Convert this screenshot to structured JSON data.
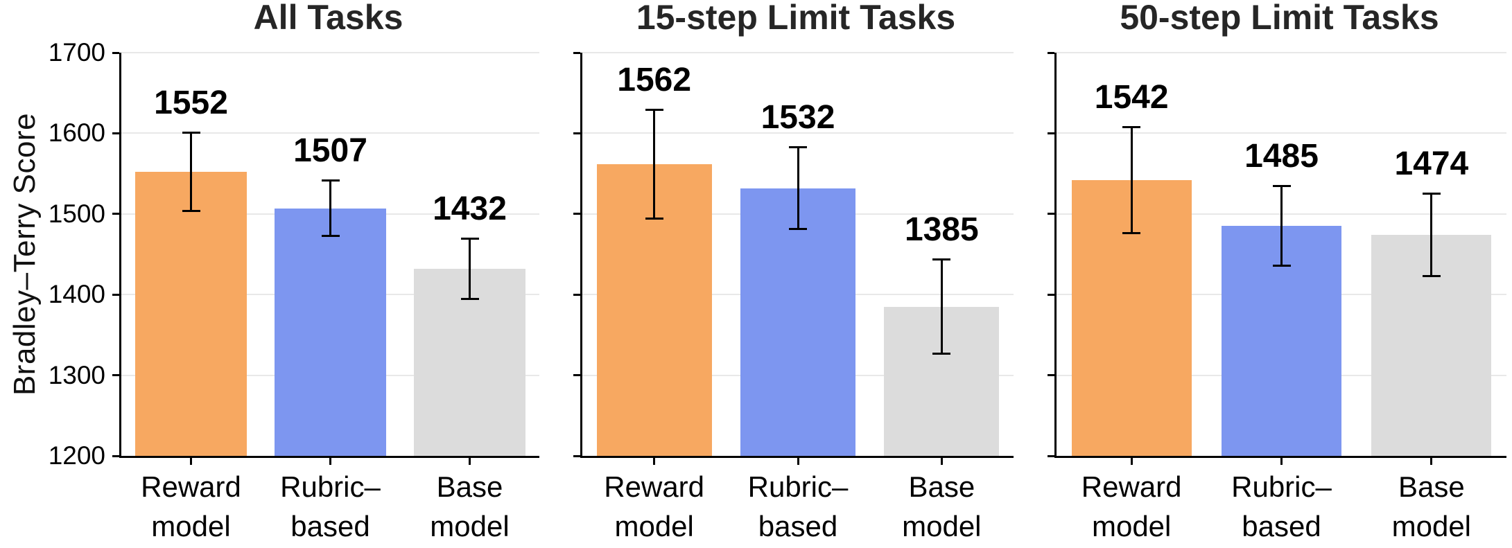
{
  "figure": {
    "background": "#ffffff",
    "axis_color": "#000000",
    "grid_color": "#e8e8e8",
    "title_color": "#262626",
    "text_color": "#000000"
  },
  "chart_data": {
    "type": "bar",
    "ylabel": "Bradley–Terry Score",
    "xlabel": "",
    "ylim": [
      1200,
      1700
    ],
    "yticks": [
      1200,
      1300,
      1400,
      1500,
      1600,
      1700
    ],
    "grid": "horizontal",
    "legend": "none",
    "categories": [
      [
        "Reward",
        "model"
      ],
      [
        "Rubric–",
        "based"
      ],
      [
        "Base",
        "model"
      ]
    ],
    "bar_colors": [
      "#F7A861",
      "#7D96F0",
      "#DCDCDC"
    ],
    "bar_color_names": [
      "orange",
      "blue",
      "gray"
    ],
    "panels": [
      {
        "title": "All Tasks",
        "values": [
          1552,
          1507,
          1432
        ],
        "errors_low": [
          1504,
          1473,
          1395
        ],
        "errors_high": [
          1600,
          1541,
          1469
        ]
      },
      {
        "title": "15-step Limit Tasks",
        "values": [
          1562,
          1532,
          1385
        ],
        "errors_low": [
          1495,
          1482,
          1327
        ],
        "errors_high": [
          1629,
          1582,
          1443
        ]
      },
      {
        "title": "50-step Limit Tasks",
        "values": [
          1542,
          1485,
          1474
        ],
        "errors_low": [
          1477,
          1436,
          1423
        ],
        "errors_high": [
          1607,
          1534,
          1525
        ]
      }
    ]
  }
}
